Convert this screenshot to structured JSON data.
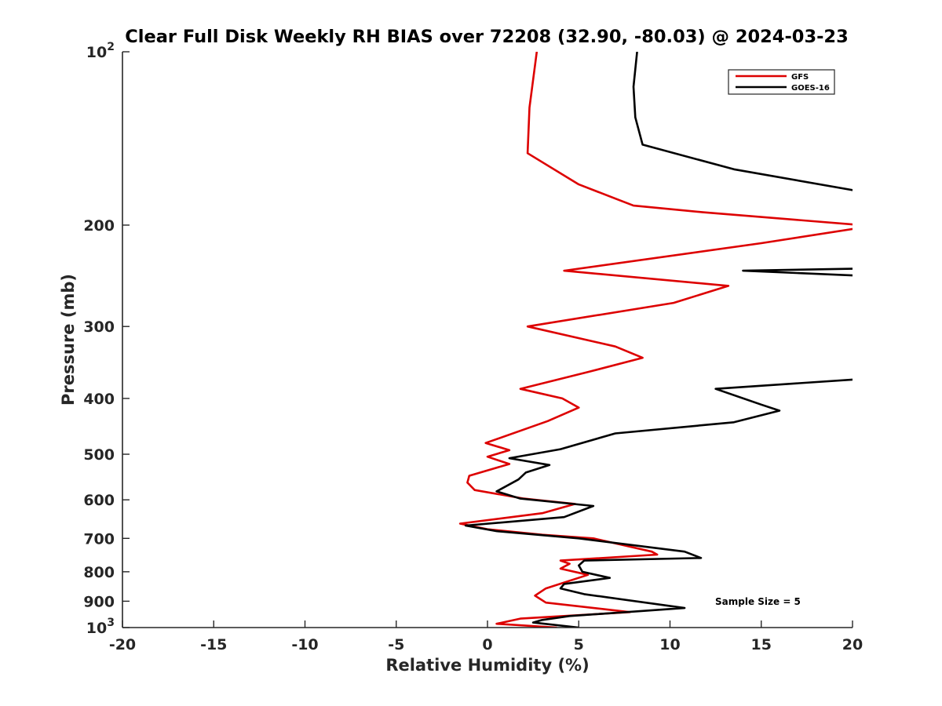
{
  "chart_data": {
    "type": "line",
    "title": "Clear Full Disk Weekly RH BIAS over 72208 (32.90, -80.03) @ 2024-03-23",
    "xlabel": "Relative Humidity (%)",
    "ylabel": "Pressure (mb)",
    "xlim": [
      -20,
      20
    ],
    "ylim": [
      1000,
      100
    ],
    "y_scale": "log",
    "y_reversed": true,
    "grid": false,
    "x_ticks": [
      "-20",
      "-15",
      "-10",
      "-5",
      "0",
      "5",
      "10",
      "15",
      "20"
    ],
    "y_ticks": [
      {
        "value": 100,
        "base": "10",
        "exp": "2"
      },
      {
        "value": 200,
        "base": "200",
        "exp": ""
      },
      {
        "value": 300,
        "base": "300",
        "exp": ""
      },
      {
        "value": 400,
        "base": "400",
        "exp": ""
      },
      {
        "value": 500,
        "base": "500",
        "exp": ""
      },
      {
        "value": 600,
        "base": "600",
        "exp": ""
      },
      {
        "value": 700,
        "base": "700",
        "exp": ""
      },
      {
        "value": 800,
        "base": "800",
        "exp": ""
      },
      {
        "value": 900,
        "base": "900",
        "exp": ""
      },
      {
        "value": 1000,
        "base": "10",
        "exp": "3"
      }
    ],
    "legend_position": "top-right",
    "annotation": "Sample Size = 5",
    "series": [
      {
        "name": "GFS",
        "color": "#dd0000",
        "points": [
          [
            2.7,
            100
          ],
          [
            2.3,
            125
          ],
          [
            2.2,
            150
          ],
          [
            5.0,
            170
          ],
          [
            8.0,
            185
          ],
          [
            11.8,
            190
          ],
          [
            20.5,
            200
          ],
          [
            20.5,
            202
          ],
          [
            15.0,
            215
          ],
          [
            4.2,
            240
          ],
          [
            13.2,
            255
          ],
          [
            10.2,
            273
          ],
          [
            2.2,
            300
          ],
          [
            7.0,
            325
          ],
          [
            8.5,
            340
          ],
          [
            5.5,
            360
          ],
          [
            1.8,
            385
          ],
          [
            4.1,
            400
          ],
          [
            5.0,
            415
          ],
          [
            3.3,
            438
          ],
          [
            -0.1,
            478
          ],
          [
            1.2,
            492
          ],
          [
            0.0,
            505
          ],
          [
            1.2,
            520
          ],
          [
            -1.0,
            545
          ],
          [
            -1.1,
            560
          ],
          [
            -0.7,
            577
          ],
          [
            2.0,
            597
          ],
          [
            4.8,
            610
          ],
          [
            3.0,
            633
          ],
          [
            -1.5,
            660
          ],
          [
            0.0,
            675
          ],
          [
            3.0,
            690
          ],
          [
            5.8,
            700
          ],
          [
            9.0,
            738
          ],
          [
            9.3,
            747
          ],
          [
            4.0,
            765
          ],
          [
            4.5,
            775
          ],
          [
            4.0,
            790
          ],
          [
            5.5,
            810
          ],
          [
            3.2,
            855
          ],
          [
            2.6,
            880
          ],
          [
            3.2,
            905
          ],
          [
            7.8,
            940
          ],
          [
            1.8,
            965
          ],
          [
            0.5,
            985
          ],
          [
            3.8,
            1000
          ]
        ]
      },
      {
        "name": "GOES-16",
        "color": "#000000",
        "points": [
          [
            8.2,
            100
          ],
          [
            8.0,
            115
          ],
          [
            8.1,
            130
          ],
          [
            8.5,
            145
          ],
          [
            13.5,
            160
          ],
          [
            20.5,
            175
          ],
          [
            20.5,
            238
          ],
          [
            14.0,
            240
          ],
          [
            20.5,
            245
          ],
          [
            20.5,
            370
          ],
          [
            12.5,
            385
          ],
          [
            15.0,
            410
          ],
          [
            16.0,
            420
          ],
          [
            13.5,
            440
          ],
          [
            7.0,
            460
          ],
          [
            4.0,
            490
          ],
          [
            1.2,
            508
          ],
          [
            3.4,
            522
          ],
          [
            2.1,
            538
          ],
          [
            1.7,
            553
          ],
          [
            0.5,
            580
          ],
          [
            1.8,
            597
          ],
          [
            5.8,
            615
          ],
          [
            4.2,
            643
          ],
          [
            -1.2,
            665
          ],
          [
            0.5,
            680
          ],
          [
            5.0,
            700
          ],
          [
            10.8,
            738
          ],
          [
            11.7,
            757
          ],
          [
            5.3,
            765
          ],
          [
            5.0,
            780
          ],
          [
            5.2,
            800
          ],
          [
            6.7,
            820
          ],
          [
            4.2,
            840
          ],
          [
            4.0,
            855
          ],
          [
            5.3,
            875
          ],
          [
            10.8,
            925
          ],
          [
            4.5,
            955
          ],
          [
            3.0,
            970
          ],
          [
            2.5,
            980
          ],
          [
            5.0,
            1000
          ]
        ]
      }
    ]
  }
}
